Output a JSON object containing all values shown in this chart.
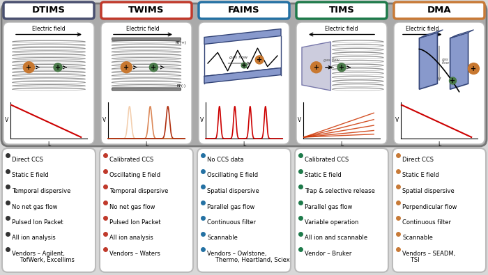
{
  "bg_color": "#d8d8d8",
  "title_boxes": [
    {
      "label": "DTIMS",
      "color": "#4a5070",
      "text_color": "#000000"
    },
    {
      "label": "TWIMS",
      "color": "#c0392b",
      "text_color": "#000000"
    },
    {
      "label": "FAIMS",
      "color": "#2471a3",
      "text_color": "#000000"
    },
    {
      "label": "TIMS",
      "color": "#1e7a4a",
      "text_color": "#000000"
    },
    {
      "label": "DMA",
      "color": "#c87a37",
      "text_color": "#000000"
    }
  ],
  "bullet_colors": [
    "#333333",
    "#c0392b",
    "#2471a3",
    "#1e7a4a",
    "#c87a37"
  ],
  "bullets": [
    [
      "Direct CCS",
      "Static E field",
      "Temporal dispersive",
      "No net gas flow",
      "Pulsed Ion Packet",
      "All ion analysis",
      "Vendors – Agilent,\n   TofWerk, Excellims"
    ],
    [
      "Calibrated CCS",
      "Oscillating E field",
      "Temporal dispersive",
      "No net gas flow",
      "Pulsed Ion Packet",
      "All ion analysis",
      "Vendors – Waters"
    ],
    [
      "No CCS data",
      "Oscillating E field",
      "Spatial dispersive",
      "Parallel gas flow",
      "Continuous filter",
      "Scannable",
      "Vendors – Owlstone,\n   Thermo, Heartland, Sciex"
    ],
    [
      "Calibrated CCS",
      "Static E field",
      "Trap & selective release",
      "Parallel gas flow",
      "Variable operation",
      "All ion and scannable",
      "Vendor – Bruker"
    ],
    [
      "Direct CCS",
      "Static E field",
      "Spatial dispersive",
      "Perpendicular flow",
      "Continuous filter",
      "Scannable",
      "Vendors – SEADM,\n   TSI"
    ]
  ]
}
